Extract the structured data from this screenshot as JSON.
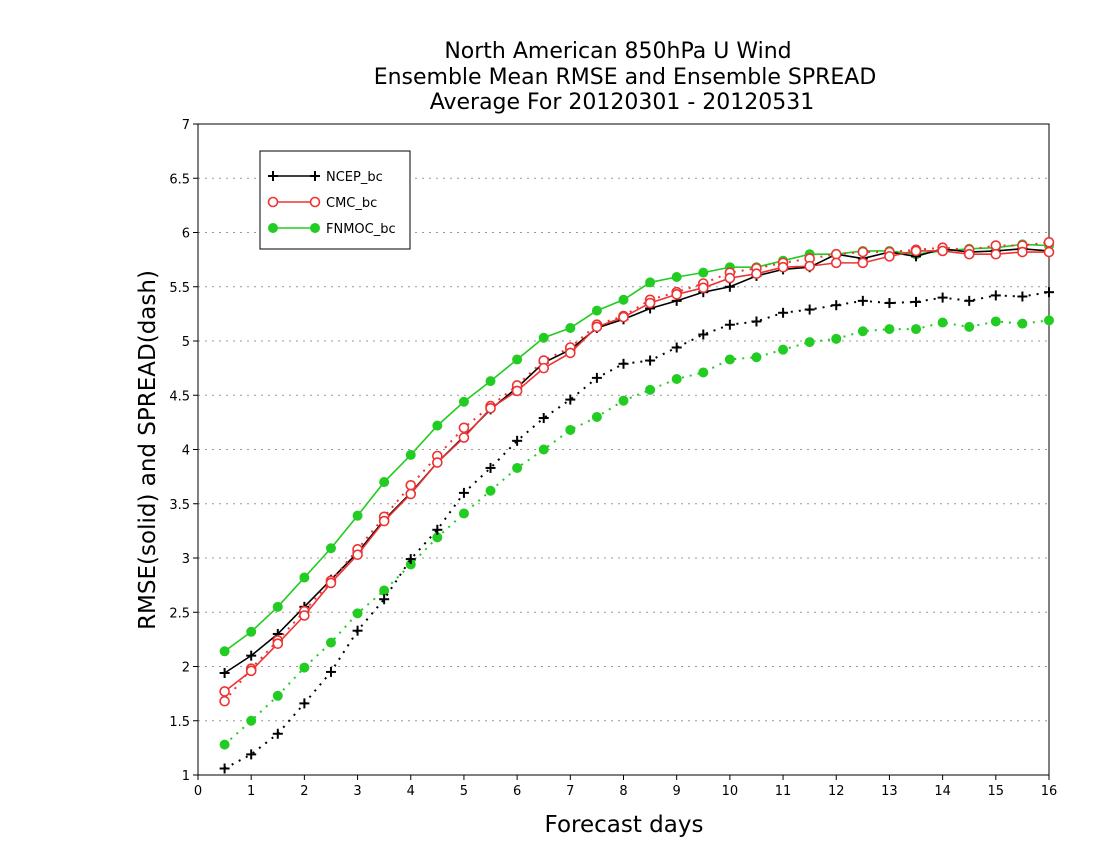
{
  "chart_data": {
    "type": "line",
    "title_lines": [
      "North American 850hPa U Wind",
      "Ensemble Mean RMSE and Ensemble SPREAD",
      "Average For 20120301 - 20120531"
    ],
    "xlabel": "Forecast days",
    "ylabel": "RMSE(solid) and SPREAD(dash)",
    "xlim": [
      0,
      16
    ],
    "ylim": [
      1,
      7
    ],
    "xticks": [
      0,
      1,
      2,
      3,
      4,
      5,
      6,
      7,
      8,
      9,
      10,
      11,
      12,
      13,
      14,
      15,
      16
    ],
    "yticks": [
      1,
      1.5,
      2,
      2.5,
      3,
      3.5,
      4,
      4.5,
      5,
      5.5,
      6,
      6.5,
      7
    ],
    "grid": "horizontal dotted",
    "legend_position": "top-left",
    "x": [
      0.5,
      1,
      1.5,
      2,
      2.5,
      3,
      3.5,
      4,
      4.5,
      5,
      5.5,
      6,
      6.5,
      7,
      7.5,
      8,
      8.5,
      9,
      9.5,
      10,
      10.5,
      11,
      11.5,
      12,
      12.5,
      13,
      13.5,
      14,
      14.5,
      15,
      15.5,
      16
    ],
    "series": [
      {
        "name": "NCEP_bc",
        "color": "#000000",
        "marker": "plus",
        "rmse": [
          1.94,
          2.1,
          2.3,
          2.55,
          2.8,
          3.05,
          3.35,
          3.6,
          3.88,
          4.12,
          4.37,
          4.57,
          4.8,
          4.92,
          5.12,
          5.2,
          5.3,
          5.37,
          5.45,
          5.5,
          5.6,
          5.66,
          5.68,
          5.8,
          5.76,
          5.82,
          5.78,
          5.85,
          5.82,
          5.83,
          5.85,
          5.83
        ],
        "spread": [
          1.06,
          1.19,
          1.38,
          1.66,
          1.95,
          2.33,
          2.62,
          2.99,
          3.26,
          3.6,
          3.83,
          4.08,
          4.29,
          4.46,
          4.66,
          4.79,
          4.82,
          4.94,
          5.06,
          5.15,
          5.18,
          5.26,
          5.29,
          5.33,
          5.37,
          5.35,
          5.36,
          5.4,
          5.37,
          5.42,
          5.41,
          5.45
        ]
      },
      {
        "name": "CMC_bc",
        "color": "#ee3333",
        "marker": "open-circle",
        "rmse": [
          1.77,
          1.96,
          2.21,
          2.47,
          2.77,
          3.03,
          3.34,
          3.59,
          3.88,
          4.11,
          4.38,
          4.54,
          4.75,
          4.89,
          5.13,
          5.22,
          5.35,
          5.43,
          5.49,
          5.58,
          5.62,
          5.68,
          5.69,
          5.72,
          5.72,
          5.78,
          5.83,
          5.83,
          5.8,
          5.8,
          5.82,
          5.82
        ],
        "spread": [
          1.68,
          1.98,
          2.24,
          2.51,
          2.79,
          3.08,
          3.38,
          3.67,
          3.94,
          4.2,
          4.4,
          4.59,
          4.82,
          4.94,
          5.15,
          5.23,
          5.38,
          5.45,
          5.53,
          5.63,
          5.67,
          5.72,
          5.76,
          5.8,
          5.82,
          5.82,
          5.84,
          5.86,
          5.84,
          5.88,
          5.88,
          5.91
        ]
      },
      {
        "name": "FNMOC_bc",
        "color": "#22cc22",
        "marker": "filled-circle",
        "rmse": [
          2.14,
          2.32,
          2.55,
          2.82,
          3.09,
          3.39,
          3.7,
          3.95,
          4.22,
          4.44,
          4.63,
          4.83,
          5.03,
          5.12,
          5.28,
          5.38,
          5.54,
          5.59,
          5.63,
          5.68,
          5.68,
          5.74,
          5.8,
          5.8,
          5.83,
          5.83,
          5.8,
          5.83,
          5.85,
          5.86,
          5.89,
          5.88
        ],
        "spread": [
          1.28,
          1.5,
          1.73,
          1.99,
          2.22,
          2.49,
          2.7,
          2.94,
          3.19,
          3.41,
          3.62,
          3.83,
          4.0,
          4.18,
          4.3,
          4.45,
          4.55,
          4.65,
          4.71,
          4.83,
          4.85,
          4.92,
          4.99,
          5.02,
          5.09,
          5.11,
          5.11,
          5.17,
          5.13,
          5.18,
          5.16,
          5.19
        ]
      }
    ]
  }
}
